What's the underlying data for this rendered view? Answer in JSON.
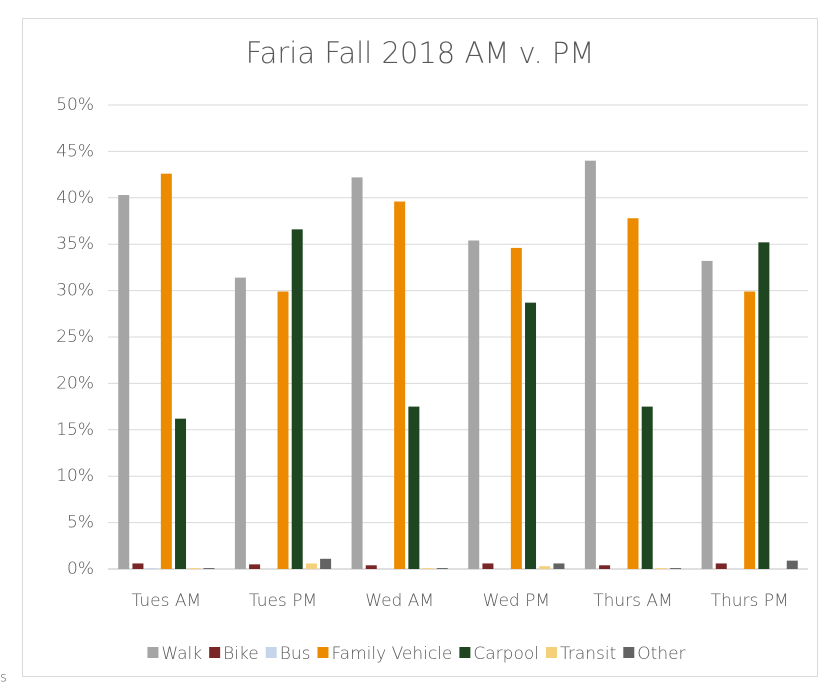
{
  "chart_data": {
    "type": "bar",
    "title": "Faria Fall 2018 AM v. PM",
    "categories": [
      "Tues AM",
      "Tues PM",
      "Wed AM",
      "Wed PM",
      "Thurs AM",
      "Thurs PM"
    ],
    "series": [
      {
        "name": "Walk",
        "color": "#a5a5a5",
        "values": [
          40.3,
          31.4,
          42.2,
          35.4,
          44.0,
          33.2
        ]
      },
      {
        "name": "Bike",
        "color": "#7b2626",
        "values": [
          0.6,
          0.5,
          0.4,
          0.6,
          0.4,
          0.6
        ]
      },
      {
        "name": "Bus",
        "color": "#c5d6ea",
        "values": [
          0.1,
          0,
          0,
          0,
          0,
          0
        ]
      },
      {
        "name": "Family Vehicle",
        "color": "#ed8b00",
        "values": [
          42.6,
          29.9,
          39.6,
          34.6,
          37.8,
          29.9
        ]
      },
      {
        "name": "Carpool",
        "color": "#1e4620",
        "values": [
          16.2,
          36.6,
          17.5,
          28.7,
          17.5,
          35.2
        ]
      },
      {
        "name": "Transit",
        "color": "#f5d07a",
        "values": [
          0.1,
          0.6,
          0.1,
          0.3,
          0.1,
          0
        ]
      },
      {
        "name": "Other",
        "color": "#636363",
        "values": [
          0.1,
          1.1,
          0.1,
          0.6,
          0.1,
          0.9
        ]
      }
    ],
    "ylim": [
      0,
      50
    ],
    "yticks": [
      {
        "value": 0,
        "label": "0%"
      },
      {
        "value": 5,
        "label": "5%"
      },
      {
        "value": 10,
        "label": "10%"
      },
      {
        "value": 15,
        "label": "15%"
      },
      {
        "value": 20,
        "label": "20%"
      },
      {
        "value": 25,
        "label": "25%"
      },
      {
        "value": 30,
        "label": "30%"
      },
      {
        "value": 35,
        "label": "35%"
      },
      {
        "value": 40,
        "label": "40%"
      },
      {
        "value": 45,
        "label": "45%"
      },
      {
        "value": 50,
        "label": "50%"
      }
    ],
    "grid": true,
    "legend": "bottom",
    "annotations": [
      "s"
    ]
  }
}
